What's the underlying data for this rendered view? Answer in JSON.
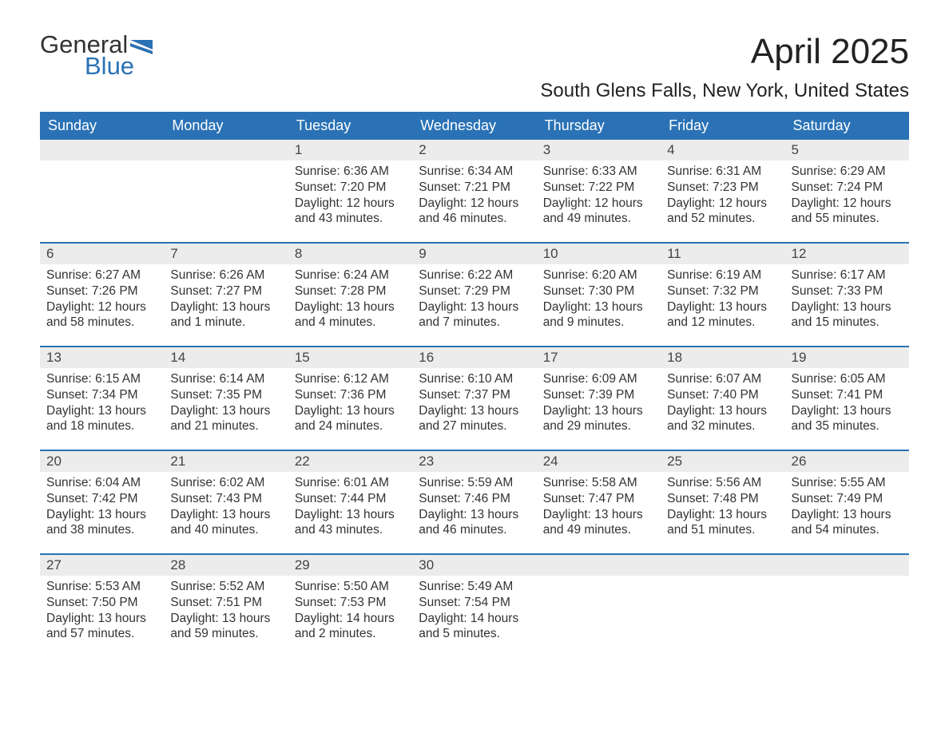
{
  "logo": {
    "word1": "General",
    "word2": "Blue",
    "flag_color": "#2a72b5"
  },
  "title": "April 2025",
  "location": "South Glens Falls, New York, United States",
  "colors": {
    "header_bg": "#2a72b5",
    "header_text": "#ffffff",
    "daynum_bg": "#ececec",
    "body_text": "#333333",
    "week_divider": "#2a72b5"
  },
  "fonts": {
    "title_pt": 44,
    "location_pt": 24,
    "dayheader_pt": 18,
    "daynum_pt": 17,
    "body_pt": 15.5
  },
  "day_headers": [
    "Sunday",
    "Monday",
    "Tuesday",
    "Wednesday",
    "Thursday",
    "Friday",
    "Saturday"
  ],
  "weeks": [
    [
      null,
      null,
      {
        "n": "1",
        "sunrise": "6:36 AM",
        "sunset": "7:20 PM",
        "daylight": "12 hours and 43 minutes."
      },
      {
        "n": "2",
        "sunrise": "6:34 AM",
        "sunset": "7:21 PM",
        "daylight": "12 hours and 46 minutes."
      },
      {
        "n": "3",
        "sunrise": "6:33 AM",
        "sunset": "7:22 PM",
        "daylight": "12 hours and 49 minutes."
      },
      {
        "n": "4",
        "sunrise": "6:31 AM",
        "sunset": "7:23 PM",
        "daylight": "12 hours and 52 minutes."
      },
      {
        "n": "5",
        "sunrise": "6:29 AM",
        "sunset": "7:24 PM",
        "daylight": "12 hours and 55 minutes."
      }
    ],
    [
      {
        "n": "6",
        "sunrise": "6:27 AM",
        "sunset": "7:26 PM",
        "daylight": "12 hours and 58 minutes."
      },
      {
        "n": "7",
        "sunrise": "6:26 AM",
        "sunset": "7:27 PM",
        "daylight": "13 hours and 1 minute."
      },
      {
        "n": "8",
        "sunrise": "6:24 AM",
        "sunset": "7:28 PM",
        "daylight": "13 hours and 4 minutes."
      },
      {
        "n": "9",
        "sunrise": "6:22 AM",
        "sunset": "7:29 PM",
        "daylight": "13 hours and 7 minutes."
      },
      {
        "n": "10",
        "sunrise": "6:20 AM",
        "sunset": "7:30 PM",
        "daylight": "13 hours and 9 minutes."
      },
      {
        "n": "11",
        "sunrise": "6:19 AM",
        "sunset": "7:32 PM",
        "daylight": "13 hours and 12 minutes."
      },
      {
        "n": "12",
        "sunrise": "6:17 AM",
        "sunset": "7:33 PM",
        "daylight": "13 hours and 15 minutes."
      }
    ],
    [
      {
        "n": "13",
        "sunrise": "6:15 AM",
        "sunset": "7:34 PM",
        "daylight": "13 hours and 18 minutes."
      },
      {
        "n": "14",
        "sunrise": "6:14 AM",
        "sunset": "7:35 PM",
        "daylight": "13 hours and 21 minutes."
      },
      {
        "n": "15",
        "sunrise": "6:12 AM",
        "sunset": "7:36 PM",
        "daylight": "13 hours and 24 minutes."
      },
      {
        "n": "16",
        "sunrise": "6:10 AM",
        "sunset": "7:37 PM",
        "daylight": "13 hours and 27 minutes."
      },
      {
        "n": "17",
        "sunrise": "6:09 AM",
        "sunset": "7:39 PM",
        "daylight": "13 hours and 29 minutes."
      },
      {
        "n": "18",
        "sunrise": "6:07 AM",
        "sunset": "7:40 PM",
        "daylight": "13 hours and 32 minutes."
      },
      {
        "n": "19",
        "sunrise": "6:05 AM",
        "sunset": "7:41 PM",
        "daylight": "13 hours and 35 minutes."
      }
    ],
    [
      {
        "n": "20",
        "sunrise": "6:04 AM",
        "sunset": "7:42 PM",
        "daylight": "13 hours and 38 minutes."
      },
      {
        "n": "21",
        "sunrise": "6:02 AM",
        "sunset": "7:43 PM",
        "daylight": "13 hours and 40 minutes."
      },
      {
        "n": "22",
        "sunrise": "6:01 AM",
        "sunset": "7:44 PM",
        "daylight": "13 hours and 43 minutes."
      },
      {
        "n": "23",
        "sunrise": "5:59 AM",
        "sunset": "7:46 PM",
        "daylight": "13 hours and 46 minutes."
      },
      {
        "n": "24",
        "sunrise": "5:58 AM",
        "sunset": "7:47 PM",
        "daylight": "13 hours and 49 minutes."
      },
      {
        "n": "25",
        "sunrise": "5:56 AM",
        "sunset": "7:48 PM",
        "daylight": "13 hours and 51 minutes."
      },
      {
        "n": "26",
        "sunrise": "5:55 AM",
        "sunset": "7:49 PM",
        "daylight": "13 hours and 54 minutes."
      }
    ],
    [
      {
        "n": "27",
        "sunrise": "5:53 AM",
        "sunset": "7:50 PM",
        "daylight": "13 hours and 57 minutes."
      },
      {
        "n": "28",
        "sunrise": "5:52 AM",
        "sunset": "7:51 PM",
        "daylight": "13 hours and 59 minutes."
      },
      {
        "n": "29",
        "sunrise": "5:50 AM",
        "sunset": "7:53 PM",
        "daylight": "14 hours and 2 minutes."
      },
      {
        "n": "30",
        "sunrise": "5:49 AM",
        "sunset": "7:54 PM",
        "daylight": "14 hours and 5 minutes."
      },
      null,
      null,
      null
    ]
  ],
  "labels": {
    "sunrise": "Sunrise: ",
    "sunset": "Sunset: ",
    "daylight": "Daylight: "
  }
}
